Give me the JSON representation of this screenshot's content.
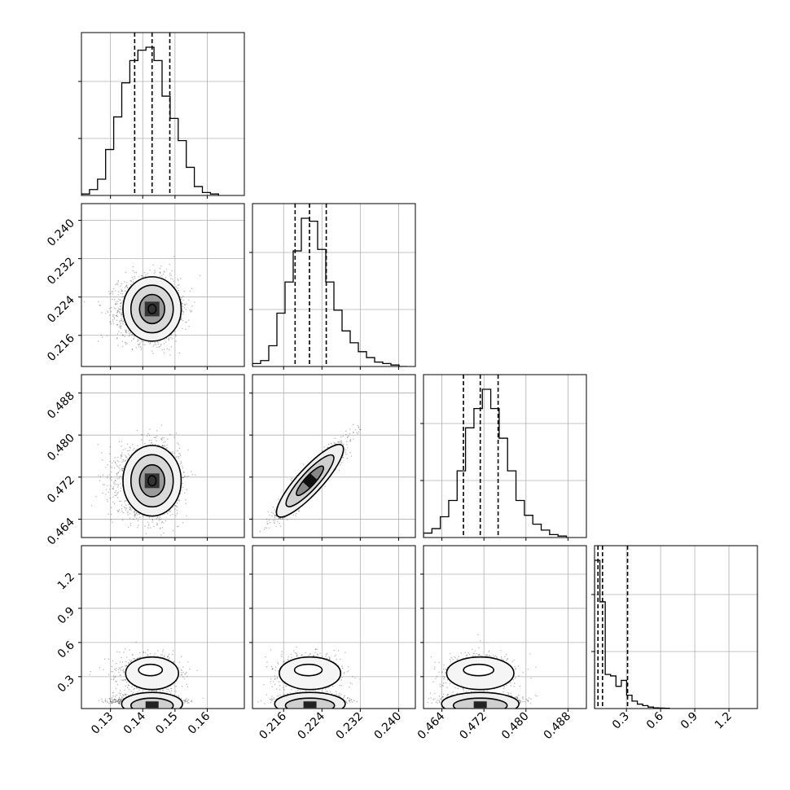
{
  "chart_data": {
    "type": "corner",
    "parameters": [
      {
        "label": "",
        "range": [
          0.121,
          0.1715
        ],
        "ticks": [
          0.13,
          0.14,
          0.15,
          0.16
        ],
        "tick_labels": [
          "0.13",
          "0.14",
          "0.15",
          "0.16"
        ],
        "quantiles": [
          0.1375,
          0.1429,
          0.1484
        ],
        "center": 0.1429,
        "sigma": [
          0.0052,
          0.0041
        ]
      },
      {
        "label": "",
        "range": [
          0.2095,
          0.2435
        ],
        "ticks": [
          0.216,
          0.224,
          0.232,
          0.24
        ],
        "tick_labels": [
          "0.216",
          "0.224",
          "0.232",
          "0.240"
        ],
        "quantiles": [
          0.2184,
          0.2214,
          0.2249
        ],
        "center": 0.2215,
        "sigma": [
          0.0032,
          0.0032
        ]
      },
      {
        "label": "",
        "range": [
          0.4605,
          0.4915
        ],
        "ticks": [
          0.464,
          0.472,
          0.48,
          0.488
        ],
        "tick_labels": [
          "0.464",
          "0.472",
          "0.480",
          "0.488"
        ],
        "quantiles": [
          0.4681,
          0.4713,
          0.4747
        ],
        "center": 0.4713,
        "sigma": [
          0.0032,
          0.0032
        ]
      },
      {
        "label": "",
        "range": [
          0.02,
          1.45
        ],
        "ticks": [
          0.3,
          0.6,
          0.9,
          1.2
        ],
        "tick_labels": [
          "0.3",
          "0.6",
          "0.9",
          "1.2"
        ],
        "quantiles": [
          0.05,
          0.09,
          0.31
        ],
        "center": 0.09,
        "sigma": [
          0.05,
          0.1
        ]
      }
    ],
    "histograms": [
      {
        "edges": [
          0.121,
          0.1235,
          0.126,
          0.1285,
          0.131,
          0.1335,
          0.136,
          0.1385,
          0.141,
          0.1435,
          0.146,
          0.1485,
          0.151,
          0.1535,
          0.156,
          0.1585,
          0.161,
          0.1635
        ],
        "counts": [
          1,
          4,
          11,
          31,
          53,
          76,
          91,
          98,
          100,
          91,
          67,
          52,
          37,
          19,
          6,
          2,
          1
        ]
      },
      {
        "edges": [
          0.2095,
          0.2112,
          0.2129,
          0.2146,
          0.2163,
          0.218,
          0.2197,
          0.2214,
          0.2231,
          0.2248,
          0.2265,
          0.2282,
          0.2299,
          0.2316,
          0.2333,
          0.235,
          0.2367,
          0.2384,
          0.2401,
          0.2418
        ],
        "counts": [
          2,
          4,
          14,
          36,
          57,
          78,
          100,
          98,
          79,
          57,
          38,
          24,
          16,
          10,
          6,
          3,
          2,
          1,
          0
        ]
      },
      {
        "edges": [
          0.4605,
          0.4621,
          0.4637,
          0.4653,
          0.4669,
          0.4685,
          0.4701,
          0.4717,
          0.4733,
          0.4749,
          0.4765,
          0.4781,
          0.4797,
          0.4813,
          0.4829,
          0.4845,
          0.4861,
          0.4877
        ],
        "counts": [
          3,
          6,
          14,
          25,
          45,
          74,
          87,
          100,
          87,
          67,
          45,
          25,
          15,
          9,
          5,
          2,
          1
        ]
      },
      {
        "edges": [
          0.02,
          0.067,
          0.114,
          0.161,
          0.208,
          0.255,
          0.302,
          0.349,
          0.396,
          0.443,
          0.49,
          0.537,
          0.584,
          0.631,
          0.678
        ],
        "counts": [
          100,
          72,
          23,
          22,
          15,
          19,
          9,
          5,
          3,
          2,
          1,
          0.5,
          0.3,
          0.2
        ]
      }
    ],
    "pairs": [
      {
        "x_param": 0,
        "y_param": 1,
        "rho": 0.0
      },
      {
        "x_param": 0,
        "y_param": 2,
        "rho": 0.0
      },
      {
        "x_param": 1,
        "y_param": 2,
        "rho": 0.93
      },
      {
        "x_param": 0,
        "y_param": 3,
        "rho": 0.0
      },
      {
        "x_param": 1,
        "y_param": 3,
        "rho": 0.0
      },
      {
        "x_param": 2,
        "y_param": 3,
        "rho": 0.0
      }
    ],
    "contour_levels": [
      0.5,
      1.0,
      1.5,
      2.0
    ],
    "grid": true,
    "colors": {
      "points": "#222222",
      "contour": "#000000",
      "grid": "#b0b0b0",
      "hist": "#000000"
    }
  }
}
